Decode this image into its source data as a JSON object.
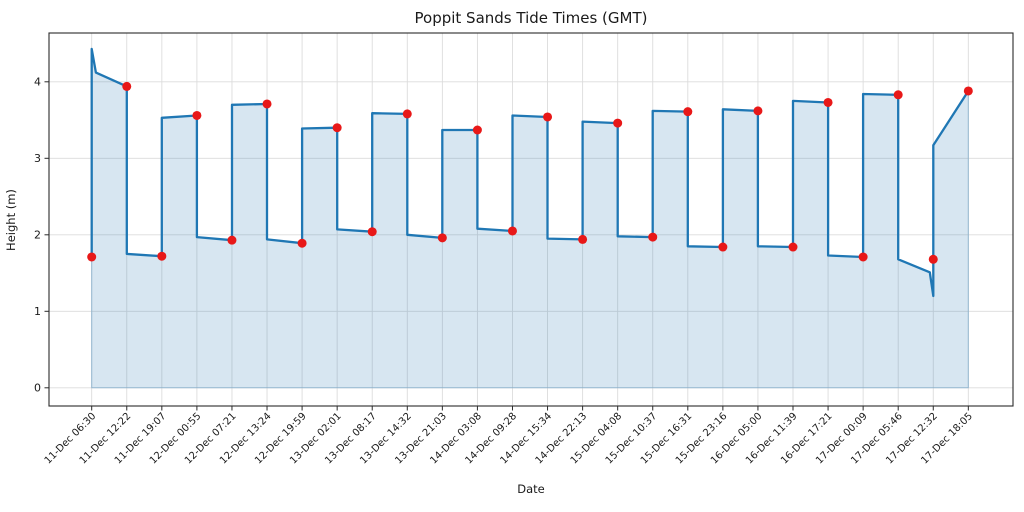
{
  "chart_data": {
    "type": "line",
    "title": "Poppit Sands Tide Times (GMT)",
    "xlabel": "Date",
    "ylabel": "Height (m)",
    "y_ticks": [
      0,
      1,
      2,
      3,
      4
    ],
    "ylim": [
      -0.25,
      4.65
    ],
    "x_index_lim": [
      -1.25,
      26.25
    ],
    "grid": true,
    "legend": "none",
    "tide_events": [
      {
        "time": "11-Dec 06:30",
        "height": 1.71,
        "tide": "low"
      },
      {
        "time": "11-Dec 12:22",
        "height": 3.94,
        "tide": "high"
      },
      {
        "time": "11-Dec 19:07",
        "height": 1.72,
        "tide": "low"
      },
      {
        "time": "12-Dec 00:55",
        "height": 3.56,
        "tide": "high"
      },
      {
        "time": "12-Dec 07:21",
        "height": 1.93,
        "tide": "low"
      },
      {
        "time": "12-Dec 13:24",
        "height": 3.71,
        "tide": "high"
      },
      {
        "time": "12-Dec 19:59",
        "height": 1.89,
        "tide": "low"
      },
      {
        "time": "13-Dec 02:01",
        "height": 3.4,
        "tide": "high"
      },
      {
        "time": "13-Dec 08:17",
        "height": 2.04,
        "tide": "low"
      },
      {
        "time": "13-Dec 14:32",
        "height": 3.58,
        "tide": "high"
      },
      {
        "time": "13-Dec 21:03",
        "height": 1.96,
        "tide": "low"
      },
      {
        "time": "14-Dec 03:08",
        "height": 3.37,
        "tide": "high"
      },
      {
        "time": "14-Dec 09:28",
        "height": 2.05,
        "tide": "low"
      },
      {
        "time": "14-Dec 15:34",
        "height": 3.54,
        "tide": "high"
      },
      {
        "time": "14-Dec 22:13",
        "height": 1.94,
        "tide": "low"
      },
      {
        "time": "15-Dec 04:08",
        "height": 3.46,
        "tide": "high"
      },
      {
        "time": "15-Dec 10:37",
        "height": 1.97,
        "tide": "low"
      },
      {
        "time": "15-Dec 16:31",
        "height": 3.61,
        "tide": "high"
      },
      {
        "time": "15-Dec 23:16",
        "height": 1.84,
        "tide": "low"
      },
      {
        "time": "16-Dec 05:00",
        "height": 3.62,
        "tide": "high"
      },
      {
        "time": "16-Dec 11:39",
        "height": 1.84,
        "tide": "low"
      },
      {
        "time": "16-Dec 17:21",
        "height": 3.73,
        "tide": "high"
      },
      {
        "time": "17-Dec 00:09",
        "height": 1.71,
        "tide": "low"
      },
      {
        "time": "17-Dec 05:46",
        "height": 3.83,
        "tide": "high"
      },
      {
        "time": "17-Dec 12:32",
        "height": 1.68,
        "tide": "low"
      },
      {
        "time": "17-Dec 18:05",
        "height": 3.88,
        "tide": "high"
      }
    ],
    "line_vertices_index_height": [
      [
        0,
        1.71
      ],
      [
        0,
        4.43
      ],
      [
        0.12,
        4.12
      ],
      [
        1,
        3.94
      ],
      [
        1,
        1.75
      ],
      [
        2,
        1.72
      ],
      [
        2,
        3.53
      ],
      [
        3,
        3.56
      ],
      [
        3,
        1.97
      ],
      [
        4,
        1.93
      ],
      [
        4,
        3.7
      ],
      [
        5,
        3.71
      ],
      [
        5,
        1.94
      ],
      [
        6,
        1.89
      ],
      [
        6,
        3.39
      ],
      [
        7,
        3.4
      ],
      [
        7,
        2.07
      ],
      [
        8,
        2.04
      ],
      [
        8,
        3.59
      ],
      [
        9,
        3.58
      ],
      [
        9,
        2.0
      ],
      [
        10,
        1.96
      ],
      [
        10,
        3.37
      ],
      [
        11,
        3.37
      ],
      [
        11,
        2.08
      ],
      [
        12,
        2.05
      ],
      [
        12,
        3.56
      ],
      [
        13,
        3.54
      ],
      [
        13,
        1.95
      ],
      [
        14,
        1.94
      ],
      [
        14,
        3.48
      ],
      [
        15,
        3.46
      ],
      [
        15,
        1.98
      ],
      [
        16,
        1.97
      ],
      [
        16,
        3.62
      ],
      [
        17,
        3.61
      ],
      [
        17,
        1.85
      ],
      [
        18,
        1.84
      ],
      [
        18,
        3.64
      ],
      [
        19,
        3.62
      ],
      [
        19,
        1.85
      ],
      [
        20,
        1.84
      ],
      [
        20,
        3.75
      ],
      [
        21,
        3.73
      ],
      [
        21,
        1.73
      ],
      [
        22,
        1.71
      ],
      [
        22,
        3.84
      ],
      [
        23,
        3.83
      ],
      [
        23,
        1.68
      ],
      [
        23.9,
        1.51
      ],
      [
        24,
        1.2
      ],
      [
        24,
        3.17
      ],
      [
        25,
        3.88
      ]
    ],
    "fill_baseline": 0,
    "colors": {
      "line": "#1f77b4",
      "fill": "rgba(31,119,180,0.18)",
      "fill_edge": "rgba(31,119,180,0.38)",
      "marker": "#e81818",
      "grid": "#dcdcdc",
      "spine": "#2a2a2a",
      "text": "#1a1a1a"
    },
    "marker_radius": 4.5,
    "line_width": 2.3
  }
}
